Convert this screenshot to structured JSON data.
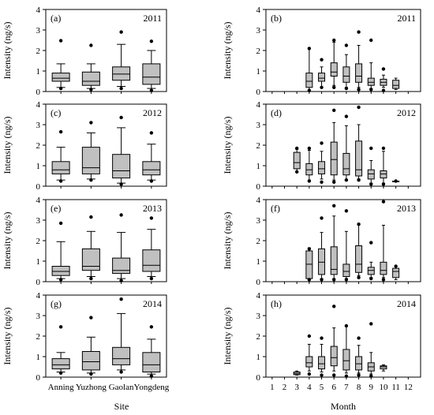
{
  "colors": {
    "box_fill": "#c0c0c0",
    "stroke": "#000000",
    "background": "#ffffff"
  },
  "shared": {
    "ylabel": "Intensity (ng/s)",
    "left_xlabel": "Site",
    "right_xlabel": "Month",
    "yticks": [
      "0",
      "1",
      "2",
      "3",
      "4"
    ],
    "site_ticks": [
      "Anning",
      "Yuzhong",
      "Gaolan",
      "Yongdeng"
    ],
    "month_ticks": [
      "1",
      "2",
      "3",
      "4",
      "5",
      "6",
      "7",
      "8",
      "9",
      "10",
      "11",
      "12"
    ]
  },
  "chart_data": [
    {
      "type": "box",
      "panel_label": "(a)",
      "year_label": "2011",
      "xaxis": "site",
      "ylim": [
        0,
        4
      ],
      "categories": [
        "Anning",
        "Yuzhong",
        "Gaolan",
        "Yongdeng"
      ],
      "boxes": [
        {
          "pos": 1,
          "whislo": 0.2,
          "q1": 0.5,
          "med": 0.65,
          "q3": 0.9,
          "whishi": 1.35,
          "fliers": [
            2.48,
            0.15
          ]
        },
        {
          "pos": 2,
          "whislo": 0.15,
          "q1": 0.3,
          "med": 0.5,
          "q3": 0.95,
          "whishi": 1.35,
          "fliers": [
            2.25,
            0.1
          ]
        },
        {
          "pos": 3,
          "whislo": 0.25,
          "q1": 0.55,
          "med": 0.85,
          "q3": 1.2,
          "whishi": 2.3,
          "fliers": [
            2.9,
            0.15
          ]
        },
        {
          "pos": 4,
          "whislo": 0.15,
          "q1": 0.35,
          "med": 0.7,
          "q3": 1.35,
          "whishi": 2.0,
          "fliers": [
            2.45,
            0.05
          ]
        }
      ]
    },
    {
      "type": "box",
      "panel_label": "(b)",
      "year_label": "2011",
      "xaxis": "month",
      "ylim": [
        0,
        4
      ],
      "categories": [
        "1",
        "2",
        "3",
        "4",
        "5",
        "6",
        "7",
        "8",
        "9",
        "10",
        "11",
        "12"
      ],
      "boxes": [
        {
          "pos": 4,
          "whislo": 0.05,
          "q1": 0.2,
          "med": 0.5,
          "q3": 0.9,
          "whishi": 2.1,
          "fliers": [
            2.1,
            0.05
          ]
        },
        {
          "pos": 5,
          "whislo": 0.2,
          "q1": 0.5,
          "med": 0.65,
          "q3": 0.9,
          "whishi": 1.2,
          "fliers": [
            1.55,
            0.2
          ]
        },
        {
          "pos": 6,
          "whislo": 0.3,
          "q1": 0.75,
          "med": 0.95,
          "q3": 1.4,
          "whishi": 2.4,
          "fliers": [
            2.5,
            0.2
          ]
        },
        {
          "pos": 7,
          "whislo": 0.2,
          "q1": 0.45,
          "med": 0.75,
          "q3": 1.2,
          "whishi": 1.8,
          "fliers": [
            2.25,
            0.15
          ]
        },
        {
          "pos": 8,
          "whislo": 0.2,
          "q1": 0.45,
          "med": 0.75,
          "q3": 1.35,
          "whishi": 2.25,
          "fliers": [
            2.9,
            0.1
          ]
        },
        {
          "pos": 9,
          "whislo": 0.15,
          "q1": 0.3,
          "med": 0.45,
          "q3": 0.65,
          "whishi": 1.4,
          "fliers": [
            2.5,
            0.1
          ]
        },
        {
          "pos": 10,
          "whislo": 0.2,
          "q1": 0.3,
          "med": 0.45,
          "q3": 0.6,
          "whishi": 0.8,
          "fliers": [
            1.1,
            0.05
          ]
        },
        {
          "pos": 11,
          "whislo": 0.1,
          "q1": 0.15,
          "med": 0.3,
          "q3": 0.55,
          "whishi": 0.65,
          "fliers": []
        }
      ]
    },
    {
      "type": "box",
      "panel_label": "(c)",
      "year_label": "2012",
      "xaxis": "site",
      "ylim": [
        0,
        4
      ],
      "categories": [
        "Anning",
        "Yuzhong",
        "Gaolan",
        "Yongdeng"
      ],
      "boxes": [
        {
          "pos": 1,
          "whislo": 0.3,
          "q1": 0.6,
          "med": 0.8,
          "q3": 1.2,
          "whishi": 1.9,
          "fliers": [
            2.65,
            0.25
          ]
        },
        {
          "pos": 2,
          "whislo": 0.35,
          "q1": 0.6,
          "med": 0.9,
          "q3": 1.9,
          "whishi": 2.6,
          "fliers": [
            3.1,
            0.3
          ]
        },
        {
          "pos": 3,
          "whislo": 0.15,
          "q1": 0.4,
          "med": 0.75,
          "q3": 1.55,
          "whishi": 2.85,
          "fliers": [
            3.35,
            0.1
          ]
        },
        {
          "pos": 4,
          "whislo": 0.3,
          "q1": 0.55,
          "med": 0.8,
          "q3": 1.2,
          "whishi": 2.05,
          "fliers": [
            2.6,
            0.25
          ]
        }
      ]
    },
    {
      "type": "box",
      "panel_label": "(d)",
      "year_label": "2012",
      "xaxis": "month",
      "ylim": [
        0,
        4
      ],
      "categories": [
        "1",
        "2",
        "3",
        "4",
        "5",
        "6",
        "7",
        "8",
        "9",
        "10",
        "11",
        "12"
      ],
      "boxes": [
        {
          "pos": 3,
          "whislo": 0.7,
          "q1": 0.85,
          "med": 1.15,
          "q3": 1.65,
          "whishi": 1.8,
          "fliers": [
            1.85,
            0.7
          ]
        },
        {
          "pos": 4,
          "whislo": 0.3,
          "q1": 0.55,
          "med": 0.8,
          "q3": 1.1,
          "whishi": 1.75,
          "fliers": [
            1.85,
            0.25
          ]
        },
        {
          "pos": 5,
          "whislo": 0.35,
          "q1": 0.6,
          "med": 0.85,
          "q3": 1.2,
          "whishi": 1.7,
          "fliers": [
            2.1,
            0.2
          ]
        },
        {
          "pos": 6,
          "whislo": 0.3,
          "q1": 0.55,
          "med": 1.3,
          "q3": 2.15,
          "whishi": 3.1,
          "fliers": [
            3.7,
            0.2
          ]
        },
        {
          "pos": 7,
          "whislo": 0.3,
          "q1": 0.55,
          "med": 0.85,
          "q3": 1.6,
          "whishi": 2.95,
          "fliers": [
            3.4,
            0.3
          ]
        },
        {
          "pos": 8,
          "whislo": 0.35,
          "q1": 0.5,
          "med": 0.8,
          "q3": 2.2,
          "whishi": 3.0,
          "fliers": [
            3.85,
            0.3
          ]
        },
        {
          "pos": 9,
          "whislo": 0.15,
          "q1": 0.35,
          "med": 0.6,
          "q3": 0.8,
          "whishi": 1.25,
          "fliers": [
            1.85,
            0.1
          ]
        },
        {
          "pos": 10,
          "whislo": 0.15,
          "q1": 0.4,
          "med": 0.6,
          "q3": 0.75,
          "whishi": 1.7,
          "fliers": [
            1.85,
            0.1
          ]
        },
        {
          "pos": 11,
          "whislo": 0.25,
          "q1": 0.25,
          "med": 0.25,
          "q3": 0.25,
          "whishi": 0.25,
          "fliers": [
            0.25
          ]
        }
      ]
    },
    {
      "type": "box",
      "panel_label": "(e)",
      "year_label": "2013",
      "xaxis": "site",
      "ylim": [
        0,
        4
      ],
      "categories": [
        "Anning",
        "Yuzhong",
        "Gaolan",
        "Yongdeng"
      ],
      "boxes": [
        {
          "pos": 1,
          "whislo": 0.15,
          "q1": 0.3,
          "med": 0.5,
          "q3": 0.75,
          "whishi": 1.95,
          "fliers": [
            2.85,
            0.1
          ]
        },
        {
          "pos": 2,
          "whislo": 0.25,
          "q1": 0.55,
          "med": 0.75,
          "q3": 1.6,
          "whishi": 2.45,
          "fliers": [
            3.15,
            0.15
          ]
        },
        {
          "pos": 3,
          "whislo": 0.15,
          "q1": 0.4,
          "med": 0.55,
          "q3": 1.15,
          "whishi": 2.4,
          "fliers": [
            3.25,
            0.05
          ]
        },
        {
          "pos": 4,
          "whislo": 0.25,
          "q1": 0.5,
          "med": 0.8,
          "q3": 1.55,
          "whishi": 2.55,
          "fliers": [
            3.1,
            0.15
          ]
        }
      ]
    },
    {
      "type": "box",
      "panel_label": "(f)",
      "year_label": "2013",
      "xaxis": "month",
      "ylim": [
        0,
        4
      ],
      "categories": [
        "1",
        "2",
        "3",
        "4",
        "5",
        "6",
        "7",
        "8",
        "9",
        "10",
        "11",
        "12"
      ],
      "boxes": [
        {
          "pos": 4,
          "whislo": 0.1,
          "q1": 0.15,
          "med": 0.85,
          "q3": 1.5,
          "whishi": 1.65,
          "fliers": [
            1.6,
            0.1
          ]
        },
        {
          "pos": 5,
          "whislo": 0.15,
          "q1": 0.35,
          "med": 0.95,
          "q3": 1.6,
          "whishi": 2.4,
          "fliers": [
            3.1,
            0.1
          ]
        },
        {
          "pos": 6,
          "whislo": 0.15,
          "q1": 0.35,
          "med": 0.6,
          "q3": 1.7,
          "whishi": 3.2,
          "fliers": [
            3.7,
            0.1
          ]
        },
        {
          "pos": 7,
          "whislo": 0.15,
          "q1": 0.25,
          "med": 0.5,
          "q3": 0.85,
          "whishi": 2.45,
          "fliers": [
            3.45,
            0.1
          ]
        },
        {
          "pos": 8,
          "whislo": 0.3,
          "q1": 0.45,
          "med": 0.85,
          "q3": 1.75,
          "whishi": 2.8,
          "fliers": [
            2.8,
            0.2
          ]
        },
        {
          "pos": 9,
          "whislo": 0.2,
          "q1": 0.35,
          "med": 0.55,
          "q3": 0.7,
          "whishi": 0.95,
          "fliers": [
            1.9,
            0.15
          ]
        },
        {
          "pos": 10,
          "whislo": 0.2,
          "q1": 0.35,
          "med": 0.55,
          "q3": 0.95,
          "whishi": 2.75,
          "fliers": [
            3.9,
            0.1
          ]
        },
        {
          "pos": 11,
          "whislo": 0.1,
          "q1": 0.2,
          "med": 0.5,
          "q3": 0.65,
          "whishi": 0.75,
          "fliers": [
            0.75
          ]
        }
      ]
    },
    {
      "type": "box",
      "panel_label": "(g)",
      "year_label": "2014",
      "xaxis": "site",
      "ylim": [
        0,
        4
      ],
      "categories": [
        "Anning",
        "Yuzhong",
        "Gaolan",
        "Yongdeng"
      ],
      "boxes": [
        {
          "pos": 1,
          "whislo": 0.25,
          "q1": 0.4,
          "med": 0.6,
          "q3": 0.9,
          "whishi": 1.2,
          "fliers": [
            2.45,
            0.2
          ]
        },
        {
          "pos": 2,
          "whislo": 0.2,
          "q1": 0.35,
          "med": 0.75,
          "q3": 1.25,
          "whishi": 1.95,
          "fliers": [
            2.9,
            0.15
          ]
        },
        {
          "pos": 3,
          "whislo": 0.35,
          "q1": 0.6,
          "med": 0.9,
          "q3": 1.45,
          "whishi": 3.1,
          "fliers": [
            3.8,
            0.25
          ]
        },
        {
          "pos": 4,
          "whislo": 0.15,
          "q1": 0.25,
          "med": 0.6,
          "q3": 1.2,
          "whishi": 1.85,
          "fliers": [
            2.45,
            0.05
          ]
        }
      ]
    },
    {
      "type": "box",
      "panel_label": "(h)",
      "year_label": "2014",
      "xaxis": "month",
      "ylim": [
        0,
        4
      ],
      "categories": [
        "1",
        "2",
        "3",
        "4",
        "5",
        "6",
        "7",
        "8",
        "9",
        "10",
        "11",
        "12"
      ],
      "boxes": [
        {
          "pos": 3,
          "whislo": 0.1,
          "q1": 0.12,
          "med": 0.18,
          "q3": 0.25,
          "whishi": 0.3,
          "fliers": []
        },
        {
          "pos": 4,
          "whislo": 0.3,
          "q1": 0.5,
          "med": 0.7,
          "q3": 1.0,
          "whishi": 1.6,
          "fliers": [
            2.0,
            0.15
          ]
        },
        {
          "pos": 5,
          "whislo": 0.25,
          "q1": 0.4,
          "med": 0.65,
          "q3": 1.0,
          "whishi": 1.6,
          "fliers": [
            1.9,
            0.1
          ]
        },
        {
          "pos": 6,
          "whislo": 0.3,
          "q1": 0.55,
          "med": 0.95,
          "q3": 1.5,
          "whishi": 2.4,
          "fliers": [
            3.45,
            0.1
          ]
        },
        {
          "pos": 7,
          "whislo": 0.2,
          "q1": 0.35,
          "med": 0.8,
          "q3": 1.35,
          "whishi": 2.5,
          "fliers": [
            2.5,
            0.05
          ]
        },
        {
          "pos": 8,
          "whislo": 0.2,
          "q1": 0.35,
          "med": 0.65,
          "q3": 1.0,
          "whishi": 1.55,
          "fliers": [
            1.9,
            0.1
          ]
        },
        {
          "pos": 9,
          "whislo": 0.15,
          "q1": 0.3,
          "med": 0.5,
          "q3": 0.7,
          "whishi": 1.2,
          "fliers": [
            2.6,
            0.05
          ]
        },
        {
          "pos": 10,
          "whislo": 0.3,
          "q1": 0.4,
          "med": 0.5,
          "q3": 0.55,
          "whishi": 0.6,
          "fliers": []
        }
      ]
    }
  ]
}
